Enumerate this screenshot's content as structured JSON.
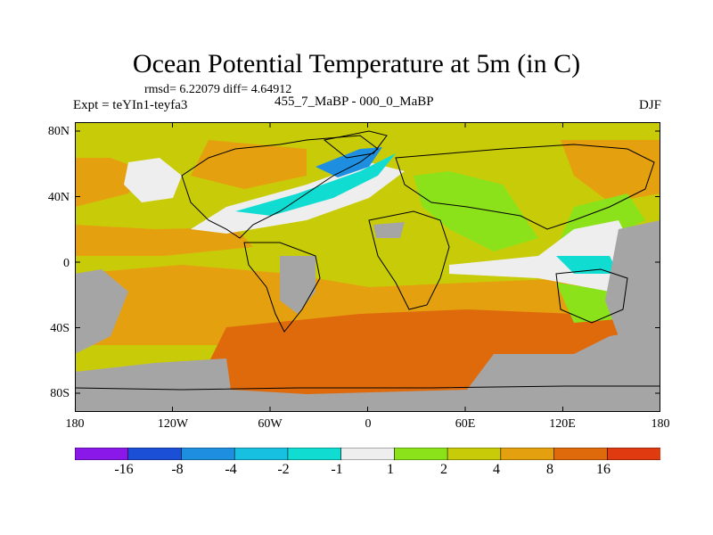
{
  "title": "Ocean Potential Temperature at 5m (in C)",
  "stats": "rmsd= 6.22079 diff= 4.64912",
  "experiment": "Expt = teYIn1-teyfa3",
  "comparison": "455_7_MaBP - 000_0_MaBP",
  "season": "DJF",
  "axes": {
    "y_ticks": [
      "80N",
      "40N",
      "0",
      "40S",
      "80S"
    ],
    "x_ticks": [
      "180",
      "120W",
      "60W",
      "0",
      "60E",
      "120E",
      "180"
    ]
  },
  "colorbar": {
    "labels": [
      "-16",
      "-8",
      "-4",
      "-2",
      "-1",
      "1",
      "2",
      "4",
      "8",
      "16"
    ],
    "colors": [
      "#8a18e8",
      "#1a4fd6",
      "#1e8fe0",
      "#17c0e0",
      "#10dcd2",
      "#eeeeee",
      "#8ce21a",
      "#c8cc08",
      "#e5a010",
      "#de6a0c",
      "#e03a10"
    ]
  },
  "land_color": "#a5a5a5",
  "map_bounds": {
    "lon": [
      -180,
      180
    ],
    "lat": [
      -90,
      90
    ]
  }
}
